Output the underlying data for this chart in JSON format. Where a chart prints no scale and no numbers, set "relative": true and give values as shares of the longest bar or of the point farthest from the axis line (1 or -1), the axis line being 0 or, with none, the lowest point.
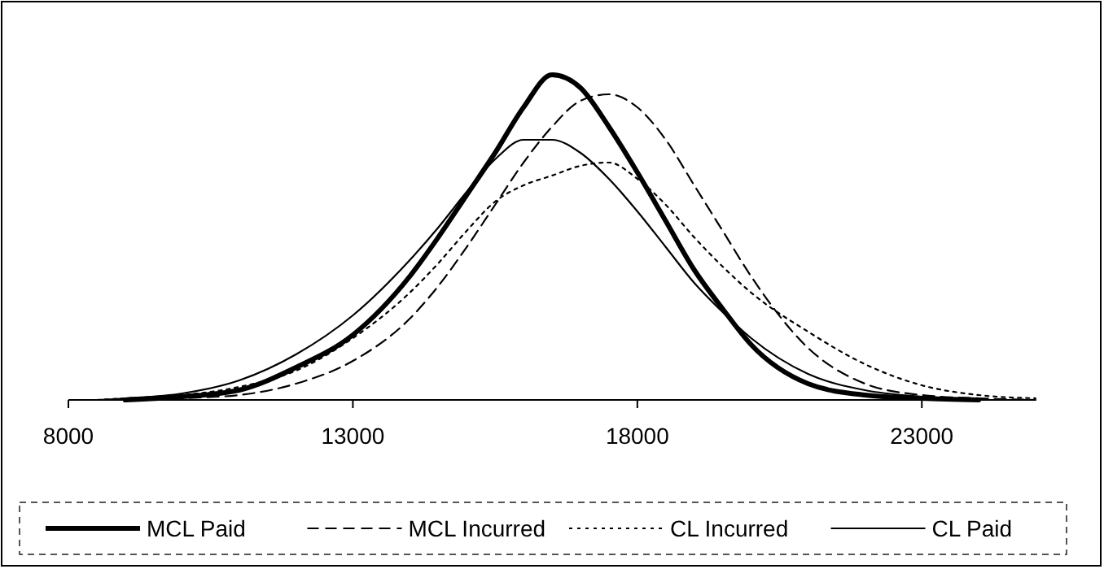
{
  "chart_data": {
    "type": "line",
    "relative": true,
    "xlim": [
      8000,
      25000
    ],
    "xticks": [
      8000,
      13000,
      18000,
      23000
    ],
    "grid": false,
    "legend": "bottom",
    "marker": "none",
    "series": [
      {
        "name": "MCL Paid",
        "color": "#000000",
        "line_style": "solid",
        "x": [
          9000,
          10000,
          11000,
          12000,
          13000,
          14000,
          14500,
          15000,
          15500,
          16000,
          16500,
          17000,
          17500,
          18000,
          18500,
          19000,
          19500,
          20000,
          21000,
          22000,
          23000,
          24000
        ],
        "values": [
          0,
          0.01,
          0.03,
          0.1,
          0.2,
          0.38,
          0.5,
          0.63,
          0.76,
          0.9,
          1,
          0.96,
          0.84,
          0.7,
          0.55,
          0.4,
          0.28,
          0.17,
          0.05,
          0.015,
          0.005,
          0
        ]
      },
      {
        "name": "MCL Incurred",
        "color": "#000000",
        "line_style": "dashed",
        "x": [
          9500,
          10000,
          11000,
          12000,
          13000,
          14000,
          14500,
          15000,
          15500,
          16000,
          16500,
          17000,
          17500,
          18000,
          18500,
          19000,
          19500,
          20000,
          21000,
          22000,
          23000,
          24000,
          25000
        ],
        "values": [
          0,
          0.005,
          0.015,
          0.05,
          0.12,
          0.25,
          0.35,
          0.47,
          0.6,
          0.73,
          0.84,
          0.92,
          0.94,
          0.9,
          0.8,
          0.66,
          0.52,
          0.38,
          0.16,
          0.05,
          0.015,
          0.005,
          0
        ]
      },
      {
        "name": "CL Incurred",
        "color": "#000000",
        "line_style": "dotted",
        "x": [
          8500,
          9000,
          10000,
          11000,
          12000,
          13000,
          14000,
          14500,
          15000,
          15500,
          16000,
          16500,
          17000,
          17500,
          18000,
          18500,
          19000,
          19500,
          20000,
          21000,
          22000,
          23000,
          24000,
          25000
        ],
        "values": [
          0,
          0.005,
          0.015,
          0.04,
          0.09,
          0.19,
          0.33,
          0.42,
          0.52,
          0.61,
          0.66,
          0.69,
          0.72,
          0.73,
          0.68,
          0.6,
          0.5,
          0.41,
          0.33,
          0.21,
          0.11,
          0.045,
          0.015,
          0.005
        ]
      },
      {
        "name": "CL Paid",
        "color": "#000000",
        "line_style": "solid",
        "x": [
          8500,
          9000,
          10000,
          11000,
          12000,
          13000,
          14000,
          14500,
          15000,
          15500,
          16000,
          16500,
          17000,
          17500,
          18000,
          18500,
          19000,
          19500,
          20000,
          21000,
          22000,
          23000,
          24000
        ],
        "values": [
          0,
          0.005,
          0.02,
          0.06,
          0.14,
          0.26,
          0.43,
          0.53,
          0.64,
          0.74,
          0.8,
          0.8,
          0.76,
          0.68,
          0.58,
          0.47,
          0.36,
          0.27,
          0.19,
          0.08,
          0.03,
          0.01,
          0
        ]
      }
    ]
  }
}
